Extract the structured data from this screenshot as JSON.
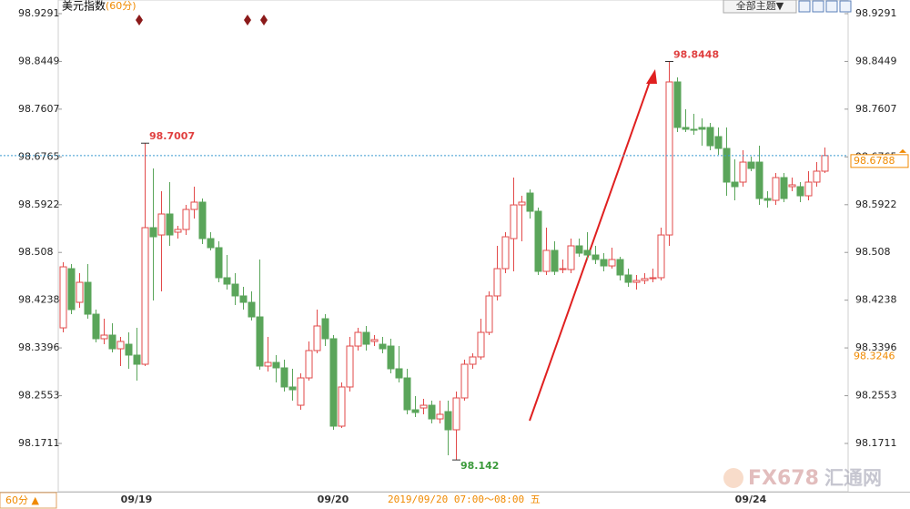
{
  "chart_data": {
    "type": "candlestick",
    "title": "美元指数",
    "subtitle": "(60分)",
    "categories": [
      null,
      null,
      null,
      null,
      null,
      null,
      null,
      null,
      null,
      "09/19",
      null,
      null,
      null,
      null,
      null,
      null,
      null,
      null,
      null,
      null,
      null,
      null,
      null,
      null,
      null,
      null,
      null,
      null,
      null,
      null,
      null,
      null,
      null,
      "09/20",
      null,
      null,
      null,
      null,
      null,
      null,
      null,
      null,
      null,
      null,
      null,
      null,
      null,
      null,
      null,
      null,
      null,
      null,
      null,
      null,
      null,
      null,
      null,
      null,
      null,
      null,
      null,
      null,
      null,
      null,
      null,
      null,
      null,
      null,
      null,
      null,
      null,
      null,
      null,
      null,
      null,
      null,
      null,
      null,
      null,
      null,
      null,
      null,
      null,
      null,
      "09/24",
      null,
      null,
      null,
      null,
      null,
      null,
      null,
      null,
      null
    ],
    "open": [
      98.375,
      98.4794,
      98.42,
      98.4553,
      98.3991,
      98.3558,
      98.3622,
      98.3381,
      98.3461,
      98.3269,
      98.3108,
      98.5517,
      98.5388,
      98.5758,
      98.5437,
      98.5485,
      98.5838,
      98.5967,
      98.5324,
      98.5164,
      98.4634,
      98.4521,
      98.4313,
      98.42,
      98.3943,
      98.3076,
      98.314,
      98.3044,
      98.2707,
      98.2385,
      98.2867,
      98.3349,
      98.3911,
      98.3558,
      98.2016,
      98.2707,
      98.3429,
      98.367,
      98.351,
      98.3461,
      98.3429,
      98.3028,
      98.2867,
      98.2305,
      98.2337,
      98.2385,
      98.2144,
      98.2273,
      98.1952,
      98.2514,
      98.3108,
      98.3237,
      98.367,
      98.4313,
      98.4794,
      98.5324,
      98.5918,
      98.6127,
      98.5806,
      98.4746,
      98.5116,
      98.4778,
      98.4778,
      98.5196,
      98.5116,
      98.5035,
      98.4955,
      98.4842,
      98.4955,
      98.4682,
      98.4553,
      98.4585,
      98.4618,
      98.4634,
      98.5388,
      98.8087,
      98.7284,
      98.7252,
      98.7284,
      98.7284,
      98.7123,
      98.6914,
      98.632,
      98.632,
      98.6673,
      98.6673,
      98.6031,
      98.5999,
      98.64,
      98.624,
      98.624,
      98.6079,
      98.632,
      98.6513
    ],
    "high": [
      98.4907,
      98.4875,
      98.4714,
      98.4875,
      98.4072,
      98.3911,
      98.3831,
      98.359,
      98.367,
      98.375,
      98.7007,
      98.6561,
      98.6159,
      98.632,
      98.5549,
      98.5918,
      98.624,
      98.6031,
      98.5437,
      98.5276,
      98.5035,
      98.4714,
      98.4473,
      98.4393,
      98.4955,
      98.359,
      98.3269,
      98.3188,
      98.3028,
      98.2947,
      98.351,
      98.4072,
      98.3991,
      98.3622,
      98.2787,
      98.359,
      98.375,
      98.3783,
      98.3622,
      98.359,
      98.3558,
      98.3429,
      98.3028,
      98.2546,
      98.2498,
      98.2466,
      98.2466,
      98.2466,
      98.2626,
      98.3188,
      98.3301,
      98.3911,
      98.4393,
      98.5196,
      98.5437,
      98.64,
      98.6079,
      98.6192,
      98.587,
      98.5517,
      98.5276,
      98.4955,
      98.5324,
      98.5324,
      98.5437,
      98.5196,
      98.5067,
      98.5164,
      98.5003,
      98.4794,
      98.4682,
      98.4714,
      98.4794,
      98.5517,
      98.8448,
      98.8167,
      98.7605,
      98.7525,
      98.7444,
      98.7364,
      98.7284,
      98.7284,
      98.6721,
      98.6882,
      98.677,
      98.6962,
      98.6159,
      98.6481,
      98.6481,
      98.64,
      98.632,
      98.6513,
      98.6673,
      98.693
    ],
    "low": [
      98.367,
      98.3991,
      98.4104,
      98.3911,
      98.3493,
      98.3461,
      98.3317,
      98.3076,
      98.3028,
      98.2819,
      98.3076,
      98.4232,
      98.4393,
      98.5196,
      98.5324,
      98.5388,
      98.5678,
      98.5228,
      98.5116,
      98.4553,
      98.4425,
      98.4152,
      98.4072,
      98.3879,
      98.3012,
      98.298,
      98.2787,
      98.2626,
      98.2466,
      98.2305,
      98.2819,
      98.3301,
      98.3429,
      98.1952,
      98.1984,
      98.2626,
      98.3349,
      98.3349,
      98.3429,
      98.3301,
      98.2947,
      98.2787,
      98.2225,
      98.2177,
      98.2225,
      98.2064,
      98.2064,
      98.1502,
      98.142,
      98.2466,
      98.3028,
      98.3188,
      98.3622,
      98.4232,
      98.4714,
      98.4746,
      98.5276,
      98.5678,
      98.4682,
      98.4682,
      98.4682,
      98.4714,
      98.4714,
      98.5003,
      98.4955,
      98.4875,
      98.4746,
      98.4794,
      98.4585,
      98.4473,
      98.4425,
      98.4521,
      98.4553,
      98.4585,
      98.5196,
      98.7203,
      98.7203,
      98.7155,
      98.6962,
      98.6882,
      98.6802,
      98.6079,
      98.5999,
      98.624,
      98.6513,
      98.5918,
      98.587,
      98.5918,
      98.5967,
      98.6159,
      98.5967,
      98.5999,
      98.624,
      98.6481
    ],
    "close": [
      98.4826,
      98.4072,
      98.4553,
      98.3991,
      98.3558,
      98.3622,
      98.3381,
      98.351,
      98.3269,
      98.3108,
      98.5517,
      98.5356,
      98.5758,
      98.5388,
      98.5485,
      98.5838,
      98.5967,
      98.5324,
      98.5164,
      98.4634,
      98.4521,
      98.4313,
      98.42,
      98.3943,
      98.3076,
      98.314,
      98.3044,
      98.2707,
      98.2658,
      98.2867,
      98.3349,
      98.3783,
      98.3558,
      98.2016,
      98.2707,
      98.3429,
      98.367,
      98.3461,
      98.3542,
      98.3381,
      98.3028,
      98.2867,
      98.2305,
      98.2257,
      98.2385,
      98.2144,
      98.2225,
      98.1952,
      98.2514,
      98.3108,
      98.3237,
      98.367,
      98.4313,
      98.4794,
      98.5356,
      98.5918,
      98.5967,
      98.5806,
      98.4746,
      98.5116,
      98.4746,
      98.4794,
      98.5196,
      98.5067,
      98.5035,
      98.4955,
      98.4842,
      98.4955,
      98.4682,
      98.4553,
      98.4585,
      98.4618,
      98.4634,
      98.5388,
      98.8087,
      98.7284,
      98.7252,
      98.7235,
      98.7252,
      98.6962,
      98.6914,
      98.632,
      98.624,
      98.6673,
      98.6561,
      98.6031,
      98.5999,
      98.64,
      98.6031,
      98.6272,
      98.6079,
      98.632,
      98.6513,
      98.6788
    ],
    "up_color": "#e24a4a",
    "down_color": "#5aa55a",
    "ylim": [
      98.086,
      98.9532
    ],
    "yticks": [
      98.1711,
      98.2553,
      98.3396,
      98.4238,
      98.508,
      98.5922,
      98.6765,
      98.7607,
      98.8449,
      98.9291
    ],
    "grid": false,
    "crosshair_value": 98.3246,
    "crosshair_time": "2019/09/20 07:00～08:00 五"
  },
  "toolbar": {
    "theme_button": "全部主题▼",
    "period_button": "60分 ▲"
  },
  "watermark": {
    "brand": "FX678",
    "name": "汇通网"
  }
}
